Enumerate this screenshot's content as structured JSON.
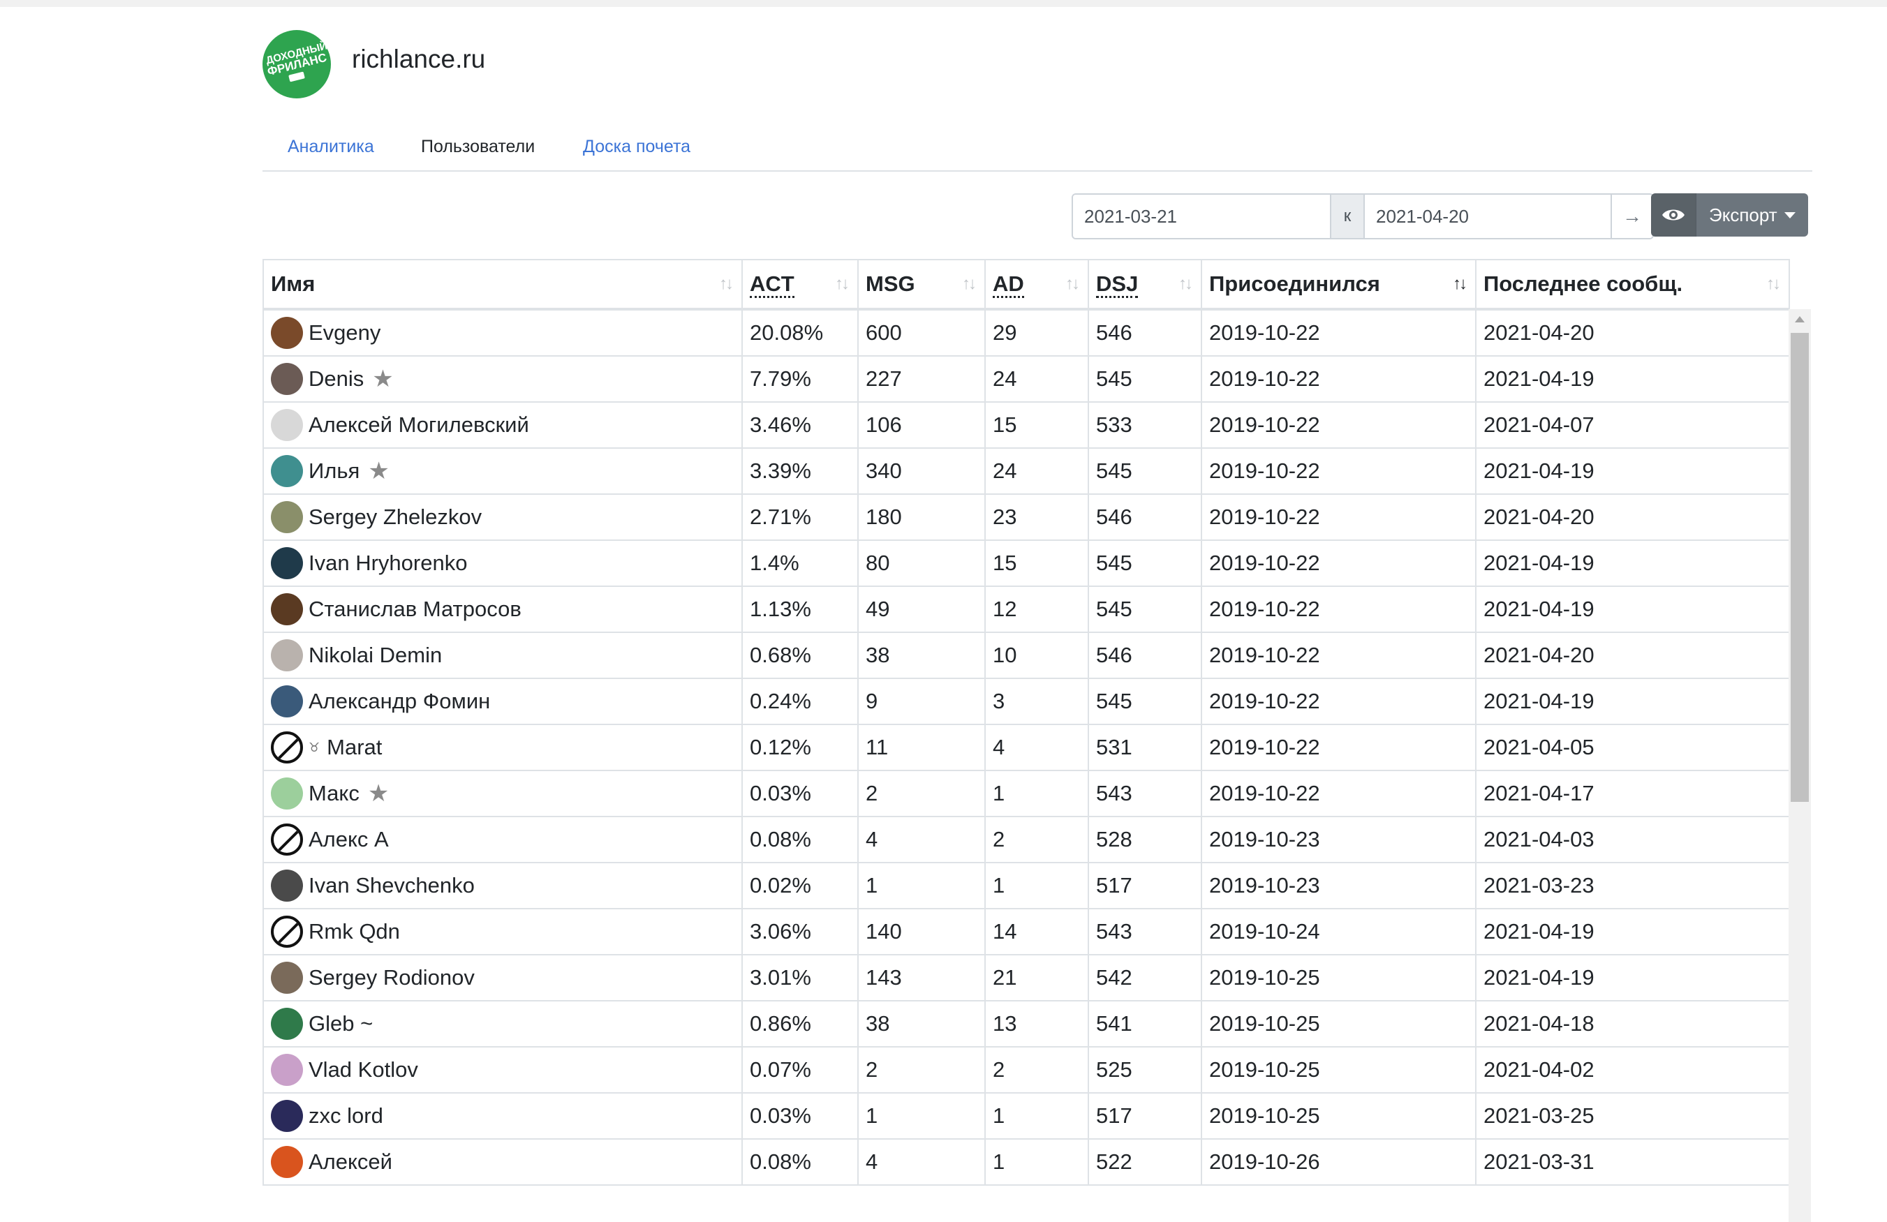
{
  "site": {
    "title": "richlance.ru",
    "logo_line1": "ДОХОДНЫЙ",
    "logo_line2": "ФРИЛАНС"
  },
  "tabs": [
    {
      "label": "Аналитика",
      "active": false
    },
    {
      "label": "Пользователи",
      "active": true
    },
    {
      "label": "Доска почета",
      "active": false
    }
  ],
  "filter": {
    "date_from": "2021-03-21",
    "separator": "к",
    "date_to": "2021-04-20",
    "go_icon": "arrow-right-icon",
    "view_icon": "eye-icon",
    "export_label": "Экспорт"
  },
  "table": {
    "columns": [
      {
        "label": "Имя",
        "abbr": false,
        "sort": "none"
      },
      {
        "label": "ACT",
        "abbr": true,
        "sort": "none"
      },
      {
        "label": "MSG",
        "abbr": false,
        "sort": "none"
      },
      {
        "label": "AD",
        "abbr": true,
        "sort": "none"
      },
      {
        "label": "DSJ",
        "abbr": true,
        "sort": "none"
      },
      {
        "label": "Присоединился",
        "abbr": false,
        "sort": "asc"
      },
      {
        "label": "Последнее сообщ.",
        "abbr": false,
        "sort": "none"
      }
    ],
    "rows": [
      {
        "name": "Evgeny",
        "avatar": "#7a4a2a",
        "star": false,
        "emoji": "",
        "act": "20.08%",
        "msg": "600",
        "ad": "29",
        "dsj": "546",
        "joined": "2019-10-22",
        "last": "2021-04-20"
      },
      {
        "name": "Denis",
        "avatar": "#6b5b55",
        "star": true,
        "emoji": "",
        "act": "7.79%",
        "msg": "227",
        "ad": "24",
        "dsj": "545",
        "joined": "2019-10-22",
        "last": "2021-04-19"
      },
      {
        "name": "Алексей Могилевский",
        "avatar": "#d8d8d8",
        "star": false,
        "emoji": "",
        "act": "3.46%",
        "msg": "106",
        "ad": "15",
        "dsj": "533",
        "joined": "2019-10-22",
        "last": "2021-04-07"
      },
      {
        "name": "Илья",
        "avatar": "#3f8f8f",
        "star": true,
        "emoji": "",
        "act": "3.39%",
        "msg": "340",
        "ad": "24",
        "dsj": "545",
        "joined": "2019-10-22",
        "last": "2021-04-19"
      },
      {
        "name": "Sergey Zhelezkov",
        "avatar": "#8a8f6a",
        "star": false,
        "emoji": "",
        "act": "2.71%",
        "msg": "180",
        "ad": "23",
        "dsj": "546",
        "joined": "2019-10-22",
        "last": "2021-04-20"
      },
      {
        "name": "Ivan Hryhorenko",
        "avatar": "#1f3a4a",
        "star": false,
        "emoji": "",
        "act": "1.4%",
        "msg": "80",
        "ad": "15",
        "dsj": "545",
        "joined": "2019-10-22",
        "last": "2021-04-19"
      },
      {
        "name": "Станислав Матросов",
        "avatar": "#5a3a22",
        "star": false,
        "emoji": "",
        "act": "1.13%",
        "msg": "49",
        "ad": "12",
        "dsj": "545",
        "joined": "2019-10-22",
        "last": "2021-04-19"
      },
      {
        "name": "Nikolai Demin",
        "avatar": "#b9b2ad",
        "star": false,
        "emoji": "",
        "act": "0.68%",
        "msg": "38",
        "ad": "10",
        "dsj": "546",
        "joined": "2019-10-22",
        "last": "2021-04-20"
      },
      {
        "name": "Александр Фомин",
        "avatar": "#3a5a7a",
        "star": false,
        "emoji": "",
        "act": "0.24%",
        "msg": "9",
        "ad": "3",
        "dsj": "545",
        "joined": "2019-10-22",
        "last": "2021-04-19"
      },
      {
        "name": "Marat",
        "avatar": "none",
        "star": false,
        "emoji": "♉",
        "act": "0.12%",
        "msg": "11",
        "ad": "4",
        "dsj": "531",
        "joined": "2019-10-22",
        "last": "2021-04-05"
      },
      {
        "name": "Макс",
        "avatar": "#9ccf9c",
        "star": true,
        "emoji": "",
        "act": "0.03%",
        "msg": "2",
        "ad": "1",
        "dsj": "543",
        "joined": "2019-10-22",
        "last": "2021-04-17"
      },
      {
        "name": "Алекс А",
        "avatar": "none",
        "star": false,
        "emoji": "",
        "act": "0.08%",
        "msg": "4",
        "ad": "2",
        "dsj": "528",
        "joined": "2019-10-23",
        "last": "2021-04-03"
      },
      {
        "name": "Ivan Shevchenko",
        "avatar": "#4a4a4a",
        "star": false,
        "emoji": "",
        "act": "0.02%",
        "msg": "1",
        "ad": "1",
        "dsj": "517",
        "joined": "2019-10-23",
        "last": "2021-03-23"
      },
      {
        "name": "Rmk Qdn",
        "avatar": "none",
        "star": false,
        "emoji": "",
        "act": "3.06%",
        "msg": "140",
        "ad": "14",
        "dsj": "543",
        "joined": "2019-10-24",
        "last": "2021-04-19"
      },
      {
        "name": "Sergey Rodionov",
        "avatar": "#7a6a5a",
        "star": false,
        "emoji": "",
        "act": "3.01%",
        "msg": "143",
        "ad": "21",
        "dsj": "542",
        "joined": "2019-10-25",
        "last": "2021-04-19"
      },
      {
        "name": "Gleb ~",
        "avatar": "#2f7a4a",
        "star": false,
        "emoji": "",
        "act": "0.86%",
        "msg": "38",
        "ad": "13",
        "dsj": "541",
        "joined": "2019-10-25",
        "last": "2021-04-18"
      },
      {
        "name": "Vlad Kotlov",
        "avatar": "#c9a0c9",
        "star": false,
        "emoji": "",
        "act": "0.07%",
        "msg": "2",
        "ad": "2",
        "dsj": "525",
        "joined": "2019-10-25",
        "last": "2021-04-02"
      },
      {
        "name": "zxc lord",
        "avatar": "#2a2a5a",
        "star": false,
        "emoji": "",
        "act": "0.03%",
        "msg": "1",
        "ad": "1",
        "dsj": "517",
        "joined": "2019-10-25",
        "last": "2021-03-25"
      },
      {
        "name": "Алексей",
        "avatar": "#d9541e",
        "star": false,
        "emoji": "",
        "act": "0.08%",
        "msg": "4",
        "ad": "1",
        "dsj": "522",
        "joined": "2019-10-26",
        "last": "2021-03-31"
      }
    ]
  }
}
